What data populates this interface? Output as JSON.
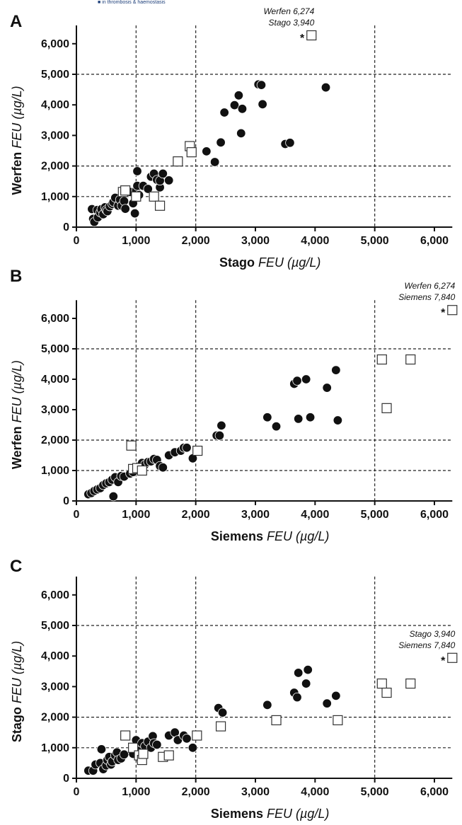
{
  "header_strip": "■ in thrombosis & haemostasis",
  "chart_data": [
    {
      "panel": "A",
      "type": "scatter",
      "xlabel_bold": "Stago",
      "xlabel_italic": "FEU (µg/L)",
      "ylabel_bold": "Werfen",
      "ylabel_italic": "FEU (µg/L)",
      "xlim": [
        0,
        6300
      ],
      "ylim": [
        0,
        6600
      ],
      "x_ticks": [
        0,
        1000,
        2000,
        3000,
        4000,
        5000,
        6000
      ],
      "x_tick_labels": [
        "0",
        "1,000",
        "2,000",
        "3,000",
        "4,000",
        "5,000",
        "6,000"
      ],
      "y_ticks": [
        0,
        1000,
        2000,
        3000,
        4000,
        5000,
        6000
      ],
      "y_tick_labels": [
        "0",
        "1,000",
        "2,000",
        "3,000",
        "4,000",
        "5,000",
        "6,000"
      ],
      "reference_lines": {
        "x": [
          1000,
          2000,
          5000
        ],
        "y": [
          1000,
          2000,
          5000
        ]
      },
      "outlier_note": [
        "Werfen 6,274",
        "Stago 3,940"
      ],
      "outlier_marker": "*",
      "series": [
        {
          "marker": "filled-circle",
          "points": [
            [
              260,
              590
            ],
            [
              280,
              270
            ],
            [
              300,
              170
            ],
            [
              350,
              560
            ],
            [
              360,
              320
            ],
            [
              400,
              480
            ],
            [
              420,
              590
            ],
            [
              450,
              420
            ],
            [
              480,
              650
            ],
            [
              500,
              560
            ],
            [
              520,
              520
            ],
            [
              560,
              680
            ],
            [
              600,
              760
            ],
            [
              620,
              820
            ],
            [
              650,
              960
            ],
            [
              700,
              700
            ],
            [
              730,
              900
            ],
            [
              760,
              700
            ],
            [
              800,
              850
            ],
            [
              820,
              600
            ],
            [
              900,
              1150
            ],
            [
              950,
              780
            ],
            [
              980,
              450
            ],
            [
              1000,
              1200
            ],
            [
              1020,
              1350
            ],
            [
              1020,
              1830
            ],
            [
              1050,
              1050
            ],
            [
              1120,
              1350
            ],
            [
              1200,
              1250
            ],
            [
              1250,
              1650
            ],
            [
              1300,
              1750
            ],
            [
              1350,
              1550
            ],
            [
              1400,
              1300
            ],
            [
              1400,
              1520
            ],
            [
              1450,
              1750
            ],
            [
              1550,
              1530
            ],
            [
              2180,
              2480
            ],
            [
              2320,
              2130
            ],
            [
              2420,
              2770
            ],
            [
              2480,
              3750
            ],
            [
              2650,
              3990
            ],
            [
              2720,
              4310
            ],
            [
              2760,
              3070
            ],
            [
              2780,
              3870
            ],
            [
              3050,
              4670
            ],
            [
              3100,
              4650
            ],
            [
              3120,
              4020
            ],
            [
              3500,
              2720
            ],
            [
              3580,
              2760
            ],
            [
              4180,
              4570
            ]
          ]
        },
        {
          "marker": "open-square",
          "points": [
            [
              780,
              1150
            ],
            [
              820,
              1200
            ],
            [
              1000,
              1000
            ],
            [
              1300,
              1000
            ],
            [
              1400,
              700
            ],
            [
              1700,
              2150
            ],
            [
              1900,
              2650
            ],
            [
              1930,
              2450
            ],
            [
              3940,
              6274
            ]
          ]
        }
      ]
    },
    {
      "panel": "B",
      "type": "scatter",
      "xlabel_bold": "Siemens",
      "xlabel_italic": "FEU (µg/L)",
      "ylabel_bold": "Werfen",
      "ylabel_italic": "FEU (µg/L)",
      "xlim": [
        0,
        6300
      ],
      "ylim": [
        0,
        6600
      ],
      "x_ticks": [
        0,
        1000,
        2000,
        3000,
        4000,
        5000,
        6000
      ],
      "x_tick_labels": [
        "0",
        "1,000",
        "2,000",
        "3,000",
        "4,000",
        "5,000",
        "6,000"
      ],
      "y_ticks": [
        0,
        1000,
        2000,
        3000,
        4000,
        5000,
        6000
      ],
      "y_tick_labels": [
        "0",
        "1,000",
        "2,000",
        "3,000",
        "4,000",
        "5,000",
        "6,000"
      ],
      "reference_lines": {
        "x": [
          1000,
          2000,
          5000
        ],
        "y": [
          1000,
          2000,
          5000
        ]
      },
      "outlier_note": [
        "Werfen 6,274",
        "Siemens 7,840"
      ],
      "outlier_marker": "*",
      "series": [
        {
          "marker": "filled-circle",
          "points": [
            [
              200,
              220
            ],
            [
              250,
              260
            ],
            [
              300,
              330
            ],
            [
              350,
              380
            ],
            [
              400,
              420
            ],
            [
              450,
              520
            ],
            [
              500,
              580
            ],
            [
              550,
              620
            ],
            [
              600,
              700
            ],
            [
              620,
              150
            ],
            [
              650,
              780
            ],
            [
              700,
              620
            ],
            [
              750,
              820
            ],
            [
              800,
              800
            ],
            [
              900,
              900
            ],
            [
              950,
              950
            ],
            [
              1000,
              1050
            ],
            [
              1050,
              1150
            ],
            [
              1100,
              1250
            ],
            [
              1150,
              1200
            ],
            [
              1200,
              1280
            ],
            [
              1250,
              1300
            ],
            [
              1300,
              1380
            ],
            [
              1350,
              1350
            ],
            [
              1400,
              1150
            ],
            [
              1450,
              1100
            ],
            [
              1550,
              1500
            ],
            [
              1650,
              1600
            ],
            [
              1750,
              1650
            ],
            [
              1800,
              1750
            ],
            [
              1850,
              1750
            ],
            [
              1950,
              1400
            ],
            [
              2350,
              2150
            ],
            [
              2400,
              2150
            ],
            [
              2430,
              2480
            ],
            [
              3200,
              2750
            ],
            [
              3350,
              2450
            ],
            [
              3650,
              3850
            ],
            [
              3700,
              3950
            ],
            [
              3720,
              2700
            ],
            [
              3850,
              4000
            ],
            [
              3920,
              2750
            ],
            [
              4200,
              3720
            ],
            [
              4350,
              4300
            ],
            [
              4380,
              2650
            ]
          ]
        },
        {
          "marker": "open-square",
          "points": [
            [
              920,
              1820
            ],
            [
              950,
              1050
            ],
            [
              1020,
              1080
            ],
            [
              1100,
              1000
            ],
            [
              2030,
              1650
            ],
            [
              5120,
              4650
            ],
            [
              5200,
              3050
            ],
            [
              5600,
              4650
            ],
            [
              6300,
              6274
            ]
          ]
        }
      ]
    },
    {
      "panel": "C",
      "type": "scatter",
      "xlabel_bold": "Siemens",
      "xlabel_italic": "FEU (µg/L)",
      "ylabel_bold": "Stago",
      "ylabel_italic": "FEU (µg/L)",
      "xlim": [
        0,
        6300
      ],
      "ylim": [
        0,
        6600
      ],
      "x_ticks": [
        0,
        1000,
        2000,
        3000,
        4000,
        5000,
        6000
      ],
      "x_tick_labels": [
        "0",
        "1,000",
        "2,000",
        "3,000",
        "4,000",
        "5,000",
        "6,000"
      ],
      "y_ticks": [
        0,
        1000,
        2000,
        3000,
        4000,
        5000,
        6000
      ],
      "y_tick_labels": [
        "0",
        "1,000",
        "2,000",
        "3,000",
        "4,000",
        "5,000",
        "6,000"
      ],
      "reference_lines": {
        "x": [
          1000,
          2000,
          5000
        ],
        "y": [
          1000,
          2000,
          5000
        ]
      },
      "outlier_note": [
        "Stago 3,940",
        "Siemens 7,840"
      ],
      "outlier_marker": "*",
      "series": [
        {
          "marker": "filled-circle",
          "points": [
            [
              200,
              250
            ],
            [
              280,
              250
            ],
            [
              320,
              450
            ],
            [
              400,
              500
            ],
            [
              420,
              950
            ],
            [
              450,
              300
            ],
            [
              500,
              420
            ],
            [
              520,
              600
            ],
            [
              550,
              700
            ],
            [
              580,
              450
            ],
            [
              600,
              550
            ],
            [
              650,
              750
            ],
            [
              680,
              850
            ],
            [
              700,
              600
            ],
            [
              750,
              650
            ],
            [
              800,
              780
            ],
            [
              950,
              800
            ],
            [
              1000,
              1250
            ],
            [
              1050,
              900
            ],
            [
              1100,
              1150
            ],
            [
              1150,
              1050
            ],
            [
              1200,
              1200
            ],
            [
              1250,
              1000
            ],
            [
              1280,
              1380
            ],
            [
              1300,
              1150
            ],
            [
              1350,
              1100
            ],
            [
              1550,
              1400
            ],
            [
              1650,
              1500
            ],
            [
              1700,
              1250
            ],
            [
              1800,
              1400
            ],
            [
              1850,
              1300
            ],
            [
              1950,
              1000
            ],
            [
              2380,
              2300
            ],
            [
              2450,
              2150
            ],
            [
              3200,
              2400
            ],
            [
              3650,
              2800
            ],
            [
              3700,
              2650
            ],
            [
              3720,
              3450
            ],
            [
              3850,
              3100
            ],
            [
              3880,
              3550
            ],
            [
              4200,
              2450
            ],
            [
              4350,
              2700
            ]
          ]
        },
        {
          "marker": "open-square",
          "points": [
            [
              820,
              1400
            ],
            [
              950,
              1000
            ],
            [
              1050,
              750
            ],
            [
              1100,
              600
            ],
            [
              1120,
              800
            ],
            [
              1450,
              700
            ],
            [
              1550,
              750
            ],
            [
              2020,
              1400
            ],
            [
              2420,
              1700
            ],
            [
              3350,
              1900
            ],
            [
              4380,
              1900
            ],
            [
              5120,
              3100
            ],
            [
              5200,
              2800
            ],
            [
              5600,
              3100
            ],
            [
              6300,
              3940
            ]
          ]
        }
      ]
    }
  ]
}
